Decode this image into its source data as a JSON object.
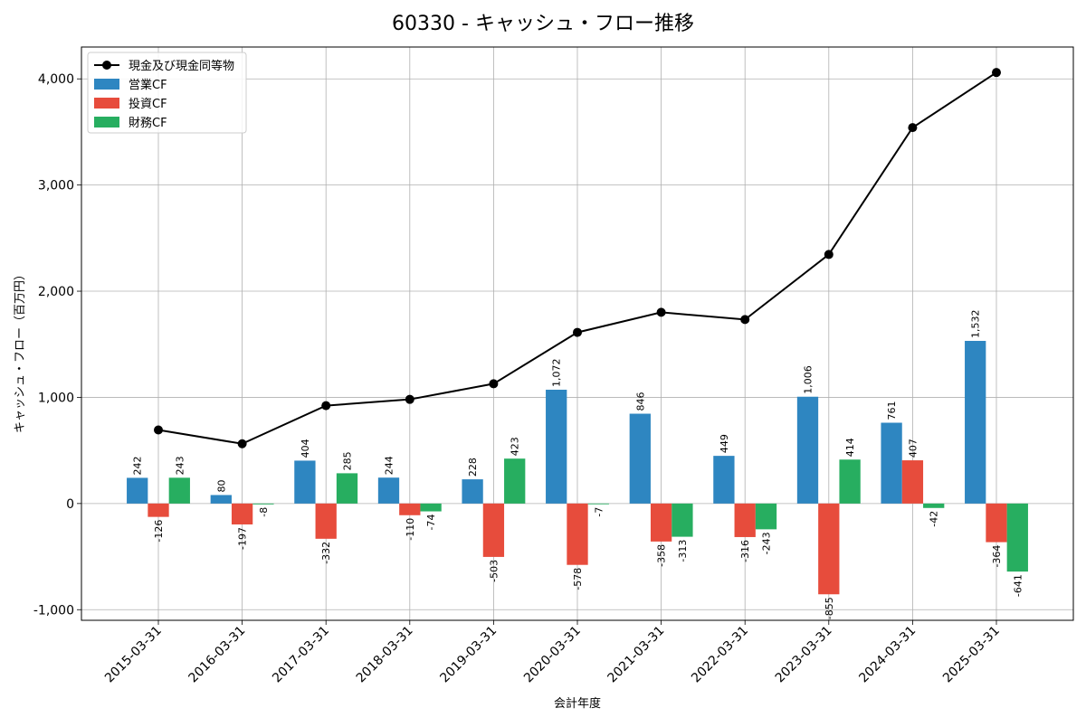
{
  "chart_data": {
    "type": "bar",
    "title": "60330 - キャッシュ・フロー推移",
    "xlabel": "会計年度",
    "ylabel": "キャッシュ・フロー（百万円）",
    "categories": [
      "2015-03-31",
      "2016-03-31",
      "2017-03-31",
      "2018-03-31",
      "2019-03-31",
      "2020-03-31",
      "2021-03-31",
      "2022-03-31",
      "2023-03-31",
      "2024-03-31",
      "2025-03-31"
    ],
    "series": [
      {
        "name": "営業CF",
        "kind": "bar",
        "color": "#2e86c1",
        "values": [
          242,
          80,
          404,
          244,
          228,
          1072,
          846,
          449,
          1006,
          761,
          1532
        ],
        "labels": [
          "242",
          "80",
          "404",
          "244",
          "228",
          "1,072",
          "846",
          "449",
          "1,006",
          "761",
          "1,532"
        ]
      },
      {
        "name": "投資CF",
        "kind": "bar",
        "color": "#e74c3c",
        "values": [
          -126,
          -197,
          -332,
          -110,
          -503,
          -578,
          -358,
          -316,
          -855,
          407,
          -364
        ],
        "labels": [
          "-126",
          "-197",
          "-332",
          "-110",
          "-503",
          "-578",
          "-358",
          "-316",
          "-855",
          "407",
          "-364"
        ]
      },
      {
        "name": "財務CF",
        "kind": "bar",
        "color": "#27ae60",
        "values": [
          243,
          -8,
          285,
          -74,
          423,
          -7,
          -313,
          -243,
          414,
          -42,
          -641
        ],
        "labels": [
          "243",
          "-8",
          "285",
          "-74",
          "423",
          "-7",
          "-313",
          "-243",
          "414",
          "-42",
          "-641"
        ]
      },
      {
        "name": "現金及び現金同等物",
        "kind": "line",
        "color": "#000000",
        "values": [
          693,
          563,
          922,
          981,
          1128,
          1612,
          1801,
          1733,
          2346,
          3541,
          4060
        ]
      }
    ],
    "ylim": [
      -1100,
      4300
    ],
    "yticks": [
      -1000,
      0,
      1000,
      2000,
      3000,
      4000
    ],
    "ytick_labels": [
      "-1,000",
      "0",
      "1,000",
      "2,000",
      "3,000",
      "4,000"
    ],
    "grid": true,
    "legend_position": "top-left"
  }
}
